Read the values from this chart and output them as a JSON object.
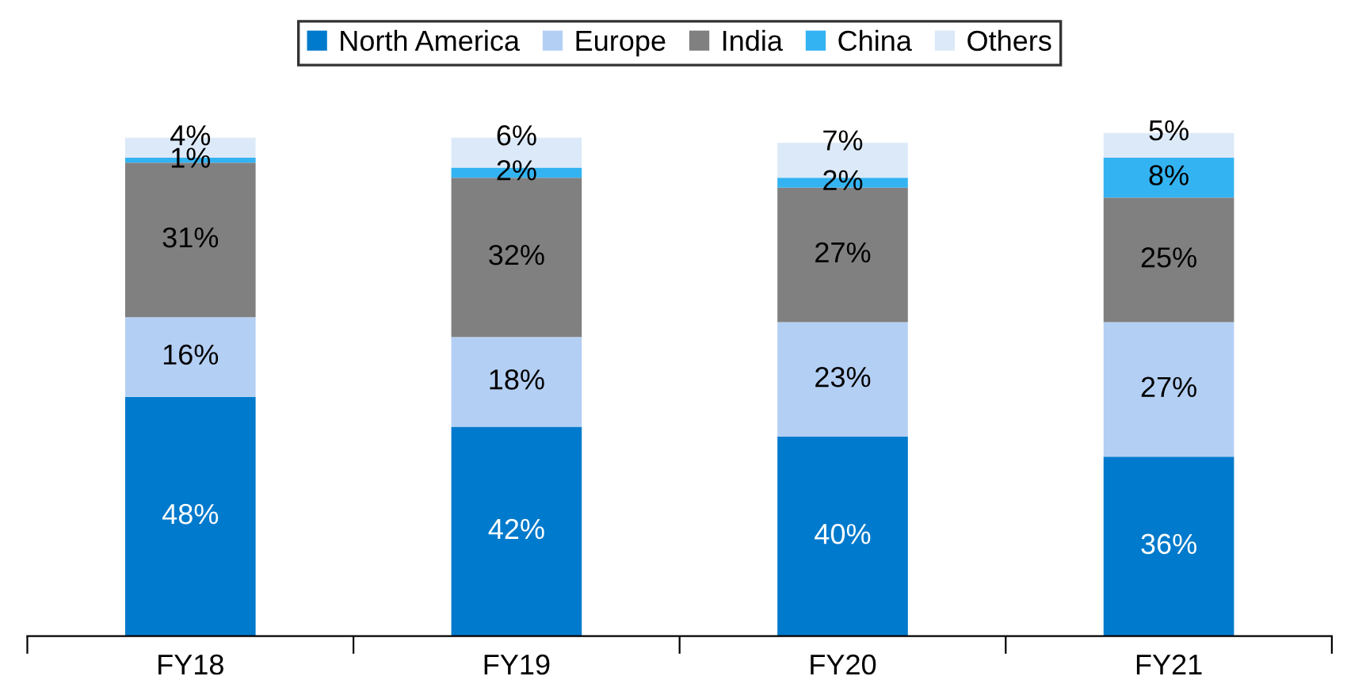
{
  "chart_data": {
    "type": "bar",
    "stacked": true,
    "categories": [
      "FY18",
      "FY19",
      "FY20",
      "FY21"
    ],
    "series": [
      {
        "name": "North America",
        "color": "#007acc",
        "values": [
          48,
          42,
          40,
          36
        ],
        "value_labels": [
          "48%",
          "42%",
          "40%",
          "36%"
        ]
      },
      {
        "name": "Europe",
        "color": "#b4cff4",
        "values": [
          16,
          18,
          23,
          27
        ],
        "value_labels": [
          "16%",
          "18%",
          "23%",
          "27%"
        ]
      },
      {
        "name": "India",
        "color": "#808080",
        "values": [
          31,
          32,
          27,
          25
        ],
        "value_labels": [
          "31%",
          "32%",
          "27%",
          "25%"
        ]
      },
      {
        "name": "China",
        "color": "#33b3f2",
        "values": [
          1,
          2,
          2,
          8
        ],
        "value_labels": [
          "1%",
          "2%",
          "2%",
          "8%"
        ]
      },
      {
        "name": "Others",
        "color": "#dce9f8",
        "values": [
          4,
          6,
          7,
          5
        ],
        "value_labels": [
          "4%",
          "6%",
          "7%",
          "5%"
        ]
      }
    ],
    "legend": "top",
    "grid": false
  }
}
